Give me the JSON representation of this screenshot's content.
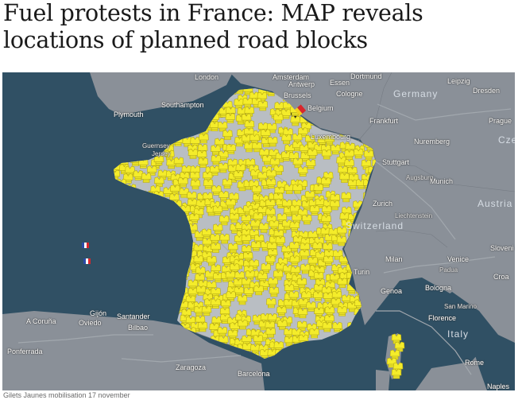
{
  "article": {
    "headline": "Fuel protests in France: MAP reveals locations of planned road blocks",
    "caption": "Gilets Jaunes mobilisation 17 november"
  },
  "map": {
    "countries": {
      "germany": "Germany",
      "switzerland": "Switzerland",
      "austria": "Austria",
      "italy": "Italy",
      "belgium": "Belgium",
      "luxembourg": "Luxembourg",
      "czech": "Czec",
      "slovenia": "Sloveni",
      "croatia": "Croa",
      "liechtenstein": "Liechtenstein"
    },
    "cities": {
      "london": "London",
      "amsterdam": "Amsterdam",
      "dortmund": "Dortmund",
      "essen": "Essen",
      "leipzig": "Leipzig",
      "dresden": "Dresden",
      "antwerp": "Antwerp",
      "brussels": "Brussels",
      "cologne": "Cologne",
      "frankfurt": "Frankfurt",
      "prague": "Prague",
      "nuremberg": "Nuremberg",
      "stuttgart": "Stuttgart",
      "augsburg": "Augsburg",
      "munich": "Munich",
      "zurich": "Zurich",
      "southampton": "Southampton",
      "plymouth": "Plymouth",
      "guernsey": "Guernsey",
      "jersey": "Jersey",
      "milan": "Milan",
      "venice": "Venice",
      "padua": "Padua",
      "turin": "Turin",
      "genoa": "Genoa",
      "bologna": "Bologna",
      "san_marino": "San Marino",
      "florence": "Florence",
      "rome": "Rome",
      "naples": "Naples",
      "bilbao": "Bilbao",
      "zaragoza": "Zaragoza",
      "barcelona": "Barcelona",
      "gijon": "Gijón",
      "oviedo": "Oviedo",
      "santander": "Santander",
      "ponferrada": "Ponferrada",
      "coruna": "A Coruña"
    }
  },
  "colors": {
    "sea": "#305064",
    "land": "#8a9098",
    "france": "#b9bec3",
    "marker": "#f4ec2a",
    "marker_stroke": "#b6aa12"
  }
}
